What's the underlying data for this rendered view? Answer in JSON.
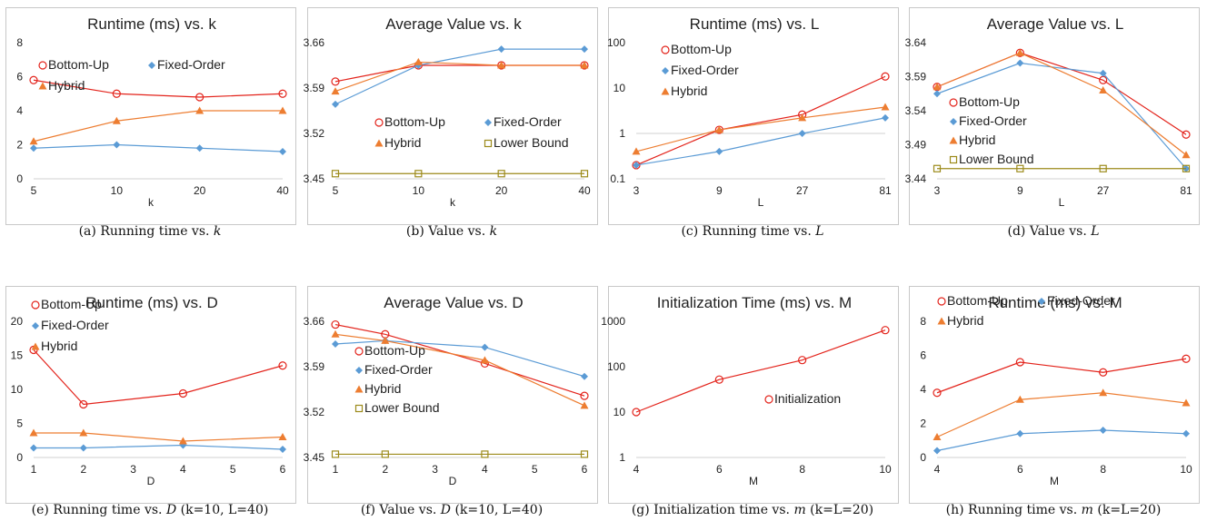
{
  "colors": {
    "bottom_up": "#e3231b",
    "fixed_order": "#5b9bd5",
    "hybrid": "#ed7d31",
    "lower_bound": "#9c8a1a",
    "initialization": "#e3231b",
    "axis": "#d0d0d0",
    "text": "#222222"
  },
  "chart_data": [
    {
      "id": "a",
      "type": "line",
      "title": "Runtime (ms) vs. k",
      "xlabel": "k",
      "ylabel": "",
      "scale": "linear",
      "categories": [
        "5",
        "10",
        "20",
        "40"
      ],
      "yticks": [
        "0",
        "2",
        "4",
        "6",
        "8"
      ],
      "ylim": [
        0,
        8
      ],
      "legend": [
        "Bottom-Up",
        "Fixed-Order",
        "Hybrid"
      ],
      "series": [
        {
          "name": "Bottom-Up",
          "values": [
            5.8,
            5.0,
            4.8,
            5.0
          ]
        },
        {
          "name": "Fixed-Order",
          "values": [
            1.8,
            2.0,
            1.8,
            1.6
          ]
        },
        {
          "name": "Hybrid",
          "values": [
            2.2,
            3.4,
            4.0,
            4.0
          ]
        }
      ],
      "caption": {
        "pre": "(a) Running time vs.",
        "var": "k",
        "post": ""
      }
    },
    {
      "id": "b",
      "type": "line",
      "title": "Average Value vs. k",
      "xlabel": "k",
      "ylabel": "",
      "scale": "linear",
      "categories": [
        "5",
        "10",
        "20",
        "40"
      ],
      "yticks": [
        "3.45",
        "3.52",
        "3.59",
        "3.66"
      ],
      "ylim": [
        3.45,
        3.66
      ],
      "legend": [
        "Bottom-Up",
        "Fixed-Order",
        "Hybrid",
        "Lower Bound"
      ],
      "series": [
        {
          "name": "Bottom-Up",
          "values": [
            3.6,
            3.625,
            3.625,
            3.625
          ]
        },
        {
          "name": "Fixed-Order",
          "values": [
            3.565,
            3.625,
            3.65,
            3.65
          ]
        },
        {
          "name": "Hybrid",
          "values": [
            3.585,
            3.63,
            3.625,
            3.625
          ]
        },
        {
          "name": "Lower Bound",
          "values": [
            3.458,
            3.458,
            3.458,
            3.458
          ]
        }
      ],
      "caption": {
        "pre": "(b) Value vs.",
        "var": "k",
        "post": ""
      }
    },
    {
      "id": "c",
      "type": "line",
      "title": "Runtime (ms) vs. L",
      "xlabel": "L",
      "ylabel": "",
      "scale": "log",
      "categories": [
        "3",
        "9",
        "27",
        "81"
      ],
      "yticks": [
        "0.1",
        "1",
        "10",
        "100"
      ],
      "ylim": [
        0.1,
        100
      ],
      "legend": [
        "Bottom-Up",
        "Fixed-Order",
        "Hybrid"
      ],
      "series": [
        {
          "name": "Bottom-Up",
          "values": [
            0.2,
            1.2,
            2.6,
            18
          ]
        },
        {
          "name": "Fixed-Order",
          "values": [
            0.2,
            0.4,
            1.0,
            2.2
          ]
        },
        {
          "name": "Hybrid",
          "values": [
            0.4,
            1.2,
            2.2,
            3.8
          ]
        }
      ],
      "caption": {
        "pre": "(c) Running time vs.",
        "var": "L",
        "post": ""
      }
    },
    {
      "id": "d",
      "type": "line",
      "title": "Average Value vs. L",
      "xlabel": "L",
      "ylabel": "",
      "scale": "linear",
      "categories": [
        "3",
        "9",
        "27",
        "81"
      ],
      "yticks": [
        "3.44",
        "3.49",
        "3.54",
        "3.59",
        "3.64"
      ],
      "ylim": [
        3.44,
        3.64
      ],
      "legend": [
        "Bottom-Up",
        "Fixed-Order",
        "Hybrid",
        "Lower Bound"
      ],
      "series": [
        {
          "name": "Bottom-Up",
          "values": [
            3.575,
            3.625,
            3.585,
            3.505
          ]
        },
        {
          "name": "Fixed-Order",
          "values": [
            3.565,
            3.61,
            3.595,
            3.455
          ]
        },
        {
          "name": "Hybrid",
          "values": [
            3.575,
            3.625,
            3.57,
            3.475
          ]
        },
        {
          "name": "Lower Bound",
          "values": [
            3.455,
            3.455,
            3.455,
            3.455
          ]
        }
      ],
      "caption": {
        "pre": "(d) Value vs.",
        "var": "L",
        "post": ""
      }
    },
    {
      "id": "e",
      "type": "line",
      "title": "Runtime (ms)  vs. D",
      "xlabel": "D",
      "ylabel": "",
      "scale": "linear",
      "numericX": true,
      "xticks": [
        "1",
        "2",
        "3",
        "4",
        "5",
        "6"
      ],
      "xlim": [
        1,
        6
      ],
      "x": [
        1,
        2,
        4,
        6
      ],
      "yticks": [
        "0",
        "5",
        "10",
        "15",
        "20"
      ],
      "ylim": [
        0,
        20
      ],
      "legend": [
        "Bottom-Up",
        "Fixed-Order",
        "Hybrid"
      ],
      "series": [
        {
          "name": "Bottom-Up",
          "values": [
            15.8,
            7.8,
            9.4,
            13.5
          ]
        },
        {
          "name": "Fixed-Order",
          "values": [
            1.4,
            1.4,
            1.8,
            1.2
          ]
        },
        {
          "name": "Hybrid",
          "values": [
            3.6,
            3.6,
            2.4,
            3.0
          ]
        }
      ],
      "caption": {
        "pre": "(e) Running time vs.",
        "var": "D",
        "post": "(k=10, L=40)"
      }
    },
    {
      "id": "f",
      "type": "line",
      "title": "Average Value vs. D",
      "xlabel": "D",
      "ylabel": "",
      "scale": "linear",
      "numericX": true,
      "xticks": [
        "1",
        "2",
        "3",
        "4",
        "5",
        "6"
      ],
      "xlim": [
        1,
        6
      ],
      "x": [
        1,
        2,
        4,
        6
      ],
      "yticks": [
        "3.45",
        "3.52",
        "3.59",
        "3.66"
      ],
      "ylim": [
        3.45,
        3.66
      ],
      "legend": [
        "Bottom-Up",
        "Fixed-Order",
        "Hybrid",
        "Lower Bound"
      ],
      "series": [
        {
          "name": "Bottom-Up",
          "values": [
            3.655,
            3.64,
            3.595,
            3.545
          ]
        },
        {
          "name": "Fixed-Order",
          "values": [
            3.625,
            3.63,
            3.62,
            3.575
          ]
        },
        {
          "name": "Hybrid",
          "values": [
            3.64,
            3.63,
            3.6,
            3.53
          ]
        },
        {
          "name": "Lower Bound",
          "values": [
            3.455,
            3.455,
            3.455,
            3.455
          ]
        }
      ],
      "caption": {
        "pre": "(f) Value vs.",
        "var": "D",
        "post": "(k=10, L=40)"
      }
    },
    {
      "id": "g",
      "type": "line",
      "title": "Initialization Time (ms) vs. M",
      "xlabel": "M",
      "ylabel": "",
      "scale": "log",
      "categories": [
        "4",
        "6",
        "8",
        "10"
      ],
      "yticks": [
        "1",
        "10",
        "100",
        "1000"
      ],
      "ylim": [
        1,
        1000
      ],
      "legend": [
        "Initialization"
      ],
      "series": [
        {
          "name": "Initialization",
          "values": [
            10,
            52,
            140,
            640
          ]
        }
      ],
      "caption": {
        "pre": "(g) Initialization time vs.",
        "var": "m",
        "post": "(k=L=20)"
      }
    },
    {
      "id": "h",
      "type": "line",
      "title": "Runtime (ms) vs. M",
      "xlabel": "M",
      "ylabel": "",
      "scale": "linear",
      "categories": [
        "4",
        "6",
        "8",
        "10"
      ],
      "yticks": [
        "0",
        "2",
        "4",
        "6",
        "8"
      ],
      "ylim": [
        0,
        8
      ],
      "legend": [
        "Bottom-Up",
        "Fixed-Order",
        "Hybrid"
      ],
      "series": [
        {
          "name": "Bottom-Up",
          "values": [
            3.8,
            5.6,
            5.0,
            5.8
          ]
        },
        {
          "name": "Fixed-Order",
          "values": [
            0.4,
            1.4,
            1.6,
            1.4
          ]
        },
        {
          "name": "Hybrid",
          "values": [
            1.2,
            3.4,
            3.8,
            3.2
          ]
        }
      ],
      "caption": {
        "pre": "(h) Running time vs.",
        "var": "m",
        "post": "(k=L=20)"
      }
    }
  ]
}
